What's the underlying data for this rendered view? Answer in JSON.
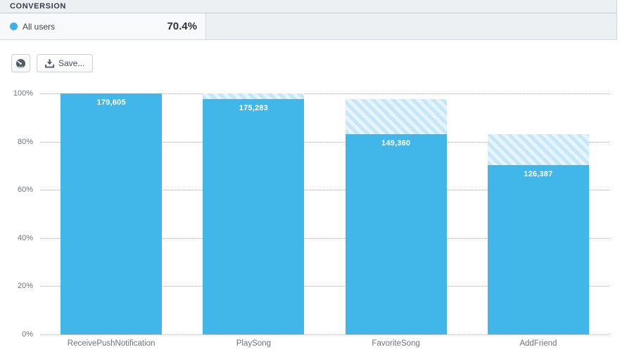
{
  "header": {
    "title": "CONVERSION"
  },
  "legend": {
    "series_label": "All users",
    "conversion_rate": "70.4%",
    "dot_color": "#3cb1e8"
  },
  "toolbar": {
    "dashboard_button_icon": "gauge-icon",
    "save_label": "Save...",
    "save_button_icon": "download-icon"
  },
  "chart_data": {
    "type": "bar",
    "subtype": "funnel",
    "title": "CONVERSION",
    "categories": [
      "ReceivePushNotification",
      "PlaySong",
      "FavoriteSong",
      "AddFriend"
    ],
    "series": [
      {
        "name": "All users",
        "values": [
          179605,
          175283,
          149360,
          126387
        ]
      }
    ],
    "value_labels": [
      "179,605",
      "175,283",
      "149,360",
      "126,387"
    ],
    "percent_of_first": [
      100,
      97.6,
      83.2,
      70.4
    ],
    "overall_conversion": "70.4%",
    "ylabel": "",
    "xlabel": "",
    "ylim": [
      0,
      100
    ],
    "yticks": [
      {
        "label": "0%",
        "value": 0
      },
      {
        "label": "20%",
        "value": 20
      },
      {
        "label": "40%",
        "value": 40
      },
      {
        "label": "60%",
        "value": 60
      },
      {
        "label": "80%",
        "value": 80
      },
      {
        "label": "100%",
        "value": 100
      }
    ],
    "grid": "horizontal-dotted",
    "legend_position": "top-left",
    "bar_color": "#41b7e9",
    "hatch_colors": [
      "#c6e7f7",
      "#e6f5fc"
    ],
    "hatch_meaning": "drop-off from previous step"
  }
}
